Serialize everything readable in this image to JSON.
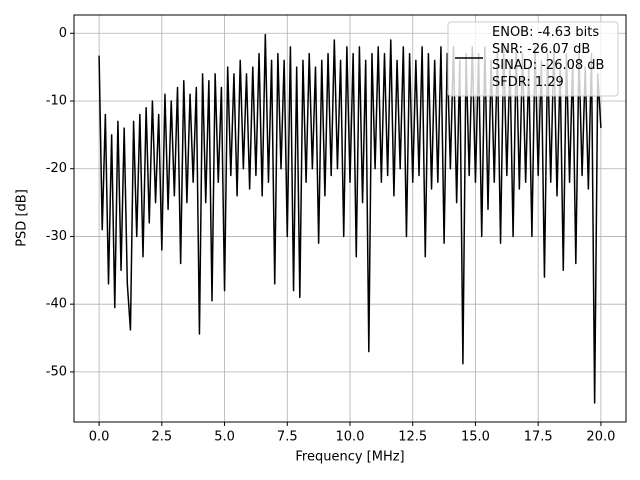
{
  "chart_data": {
    "type": "line",
    "xlabel": "Frequency [MHz]",
    "ylabel": "PSD [dB]",
    "xlim": [
      -1.0,
      21.0
    ],
    "ylim": [
      -57.4,
      2.7
    ],
    "xticks": [
      {
        "value": 0,
        "label": "0.0"
      },
      2.5,
      {
        "value": 5,
        "label": "5.0"
      },
      7.5,
      {
        "value": 10,
        "label": "10.0"
      },
      12.5,
      {
        "value": 15,
        "label": "15.0"
      },
      17.5,
      {
        "value": 20,
        "label": "20.0"
      }
    ],
    "yticks": [
      0,
      -10,
      -20,
      -30,
      -40,
      -50
    ],
    "grid": true,
    "legend": "upper right",
    "x": [
      0,
      0.125,
      0.25,
      0.375,
      0.5,
      0.625,
      0.75,
      0.875,
      1,
      1.125,
      1.25,
      1.375,
      1.5,
      1.625,
      1.75,
      1.875,
      2,
      2.125,
      2.25,
      2.375,
      2.5,
      2.625,
      2.75,
      2.875,
      3,
      3.125,
      3.25,
      3.375,
      3.5,
      3.625,
      3.75,
      3.875,
      4,
      4.125,
      4.25,
      4.375,
      4.5,
      4.625,
      4.75,
      4.875,
      5,
      5.125,
      5.25,
      5.375,
      5.5,
      5.625,
      5.75,
      5.875,
      6,
      6.125,
      6.25,
      6.375,
      6.5,
      6.625,
      6.75,
      6.875,
      7,
      7.125,
      7.25,
      7.375,
      7.5,
      7.625,
      7.75,
      7.875,
      8,
      8.125,
      8.25,
      8.375,
      8.5,
      8.625,
      8.75,
      8.875,
      9,
      9.125,
      9.25,
      9.375,
      9.5,
      9.625,
      9.75,
      9.875,
      10,
      10.125,
      10.25,
      10.375,
      10.5,
      10.625,
      10.75,
      10.875,
      11,
      11.125,
      11.25,
      11.375,
      11.5,
      11.625,
      11.75,
      11.875,
      12,
      12.125,
      12.25,
      12.375,
      12.5,
      12.625,
      12.75,
      12.875,
      13,
      13.125,
      13.25,
      13.375,
      13.5,
      13.625,
      13.75,
      13.875,
      14,
      14.125,
      14.25,
      14.375,
      14.5,
      14.625,
      14.75,
      14.875,
      15,
      15.125,
      15.25,
      15.375,
      15.5,
      15.625,
      15.75,
      15.875,
      16,
      16.125,
      16.25,
      16.375,
      16.5,
      16.625,
      16.75,
      16.875,
      17,
      17.125,
      17.25,
      17.375,
      17.5,
      17.625,
      17.75,
      17.875,
      18,
      18.125,
      18.25,
      18.375,
      18.5,
      18.625,
      18.75,
      18.875,
      19,
      19.125,
      19.25,
      19.375,
      19.5,
      19.625,
      19.75,
      19.875,
      20
    ],
    "series": [
      {
        "name": "ENOB: -4.63 bits\nSNR: -26.07 dB\nSINAD: -26.08 dB\nSFDR: 1.29",
        "color": "#000000",
        "values": [
          -3.3,
          -29,
          -12,
          -37,
          -15,
          -40.5,
          -13,
          -35,
          -14,
          -37,
          -43.8,
          -13,
          -30,
          -12,
          -33,
          -11,
          -28,
          -10,
          -25,
          -12,
          -32,
          -9,
          -26,
          -10,
          -24,
          -8,
          -34,
          -7,
          -25,
          -9,
          -22,
          -8,
          -44.4,
          -6,
          -25,
          -7,
          -39.5,
          -6,
          -22,
          -8,
          -38,
          -5,
          -21,
          -6,
          -24,
          -4,
          -20,
          -6,
          -23,
          -5,
          -21,
          -3,
          -24,
          -0.2,
          -22,
          -4,
          -37,
          -3,
          -20,
          -4,
          -30,
          -2,
          -38,
          -5,
          -39,
          -4,
          -22,
          -3,
          -20,
          -5,
          -31,
          -4,
          -24,
          -3,
          -21,
          -1,
          -20,
          -4,
          -30,
          -2,
          -22,
          -3,
          -33,
          -2,
          -25,
          -4,
          -47,
          -3,
          -20,
          -2,
          -22,
          -3,
          -21,
          -1,
          -24,
          -4,
          -20,
          -2,
          -30,
          -3,
          -22,
          -4,
          -21,
          -2,
          -33,
          -3,
          -23,
          -4,
          -22,
          -2,
          -31,
          -3,
          -20,
          -2,
          -25,
          -4,
          -48.8,
          -3,
          -21,
          -2,
          -22,
          -3,
          -30,
          -2,
          -26,
          -4,
          -22,
          -3,
          -31,
          -2,
          -21,
          -4,
          -30,
          -2,
          -23,
          -3,
          -22,
          -5,
          -30,
          -2,
          -21,
          -4,
          -36,
          -3,
          -22,
          -2,
          -24,
          -5,
          -35,
          -3,
          -22,
          -4,
          -34,
          -3,
          -21,
          -5,
          -23,
          -3,
          -54.6,
          -6,
          -14
        ]
      }
    ]
  }
}
